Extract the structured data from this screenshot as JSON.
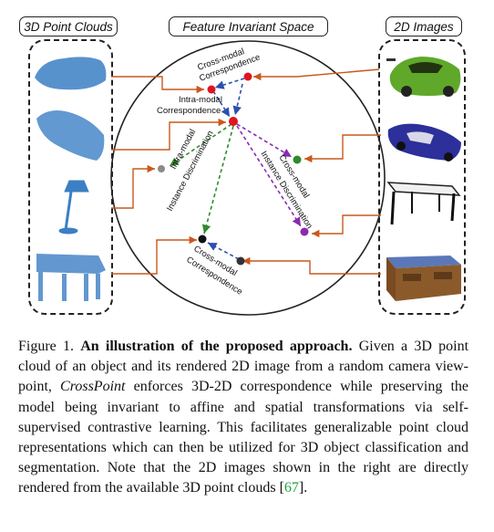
{
  "headers": {
    "left": "3D Point Clouds",
    "center": "Feature Invariant Space",
    "right": "2D Images"
  },
  "labels": {
    "cross_modal_correspondence_top_1": "Cross-modal",
    "cross_modal_correspondence_top_2": "Correspondence",
    "intra_modal_correspondence_1": "Intra-modal",
    "intra_modal_correspondence_2": "Correspondence",
    "intra_modal_discrimination_1": "Intra-modal",
    "intra_modal_discrimination_2": "Instance Discrimination",
    "cross_modal_discrimination_1": "Cross-modal",
    "cross_modal_discrimination_2": "Instance Discrimination",
    "cross_modal_correspondence_bottom_1": "Cross-modal",
    "cross_modal_correspondence_bottom_2": "Correspondence"
  },
  "caption": {
    "figure_label": "Figure 1.",
    "bold_title": "An illustration of the proposed approach.",
    "text_1": "Given a 3D point cloud of an object and its rendered 2D image from a random camera view-point,",
    "method": "CrossPoint",
    "text_2": "enforces 3D-2D correspondence while preserving the model being invariant to affine and spatial transformations via self-supervised contrastive learning. This facilitates generalizable point cloud representations which can then be utilized for 3D object classification and segmentation. Note that the 2D images shown in the right are directly rendered from the available 3D point clouds",
    "citation": "67",
    "end": "."
  },
  "colors": {
    "red": "#e0141e",
    "blue": "#2b4fb0",
    "purple": "#8a2ab0",
    "green": "#2e8b2e",
    "gray": "#8a8a8a",
    "orange_arrow": "#c9581c",
    "point_cloud": "#3b7fc4"
  }
}
